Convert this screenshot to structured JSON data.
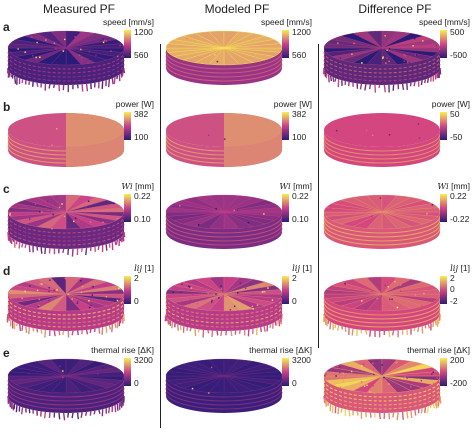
{
  "columns": [
    {
      "title": "Measured PF"
    },
    {
      "title": "Modeled PF"
    },
    {
      "title": "Difference PF"
    }
  ],
  "rows": [
    {
      "letter": "a",
      "cells": [
        {
          "label": "speed [mm/s]",
          "label_var": "",
          "max": "1200",
          "mid": "",
          "min": "560"
        },
        {
          "label": "speed [mm/s]",
          "label_var": "",
          "max": "1200",
          "mid": "",
          "min": "560"
        },
        {
          "label": "speed [mm/s]",
          "label_var": "",
          "max": "500",
          "mid": "",
          "min": "-500"
        }
      ]
    },
    {
      "letter": "b",
      "cells": [
        {
          "label": "power [W]",
          "label_var": "",
          "max": "382",
          "mid": "",
          "min": "100"
        },
        {
          "label": "power [W]",
          "label_var": "",
          "max": "382",
          "mid": "",
          "min": "100"
        },
        {
          "label": "power [W]",
          "label_var": "",
          "max": "50",
          "mid": "",
          "min": "-50"
        }
      ]
    },
    {
      "letter": "c",
      "cells": [
        {
          "label": "[mm]",
          "label_var": "Wi",
          "max": "0.22",
          "mid": "",
          "min": "0.10"
        },
        {
          "label": "[mm]",
          "label_var": "Wi",
          "max": "0.22",
          "mid": "",
          "min": "0.10"
        },
        {
          "label": "[mm]",
          "label_var": "Wi",
          "max": "0.22",
          "mid": "",
          "min": "-0.22"
        }
      ]
    },
    {
      "letter": "d",
      "cells": [
        {
          "label": "[1]",
          "label_var": "lij",
          "max": "2",
          "mid": "",
          "min": "0"
        },
        {
          "label": "[1]",
          "label_var": "lij",
          "max": "2",
          "mid": "",
          "min": "0"
        },
        {
          "label": "[1]",
          "label_var": "lij",
          "max": "2",
          "mid": "0",
          "min": "-2"
        }
      ]
    },
    {
      "letter": "e",
      "cells": [
        {
          "label": "thermal rise [ΔK]",
          "label_var": "",
          "max": "3200",
          "mid": "",
          "min": "0"
        },
        {
          "label": "thermal rise [ΔK]",
          "label_var": "",
          "max": "3200",
          "mid": "",
          "min": "0"
        },
        {
          "label": "thermal rise [ΔK]",
          "label_var": "",
          "max": "200",
          "mid": "",
          "min": "-200"
        }
      ]
    }
  ],
  "colors": {
    "seq_dark": "#2a1b78",
    "seq_mid": "#c93f8a",
    "seq_light": "#f8ee52",
    "div_low": "#2a1b78",
    "div_mid": "#d4467f",
    "div_high": "#f8ee52"
  }
}
